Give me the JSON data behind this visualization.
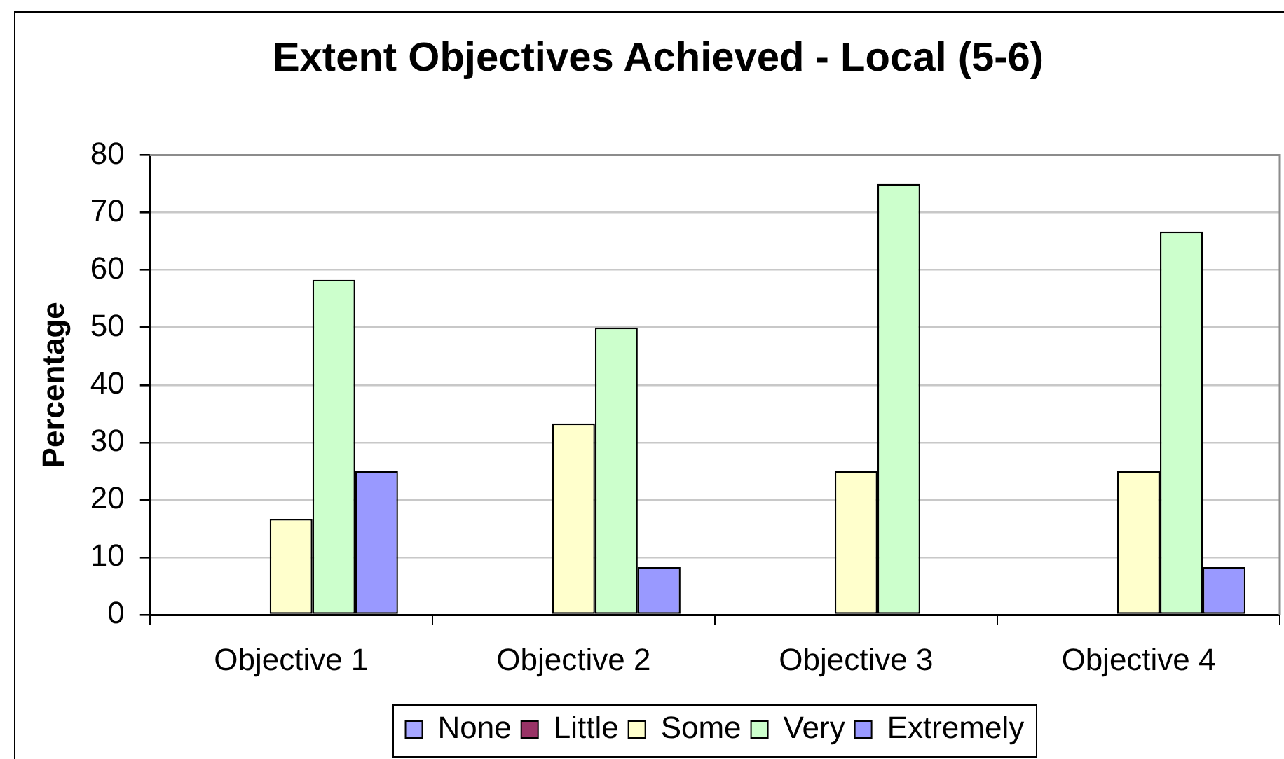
{
  "chart_data": {
    "type": "bar",
    "title": "Extent Objectives Achieved - Local (5-6)",
    "ylabel": "Percentage",
    "categories": [
      "Objective 1",
      "Objective 2",
      "Objective 3",
      "Objective 4"
    ],
    "series": [
      {
        "name": "None",
        "color": "#a6a6ff",
        "values": [
          0,
          0,
          0,
          0
        ]
      },
      {
        "name": "Little",
        "color": "#993366",
        "values": [
          0,
          0,
          0,
          0
        ]
      },
      {
        "name": "Some",
        "color": "#ffffcc",
        "values": [
          16.7,
          33.3,
          25,
          25
        ]
      },
      {
        "name": "Very",
        "color": "#ccffcc",
        "values": [
          58.3,
          50,
          75,
          66.7
        ]
      },
      {
        "name": "Extremely",
        "color": "#9999ff",
        "values": [
          25,
          8.3,
          0,
          8.3
        ]
      }
    ],
    "ylim": [
      0,
      80
    ],
    "yticks": [
      0,
      10,
      20,
      30,
      40,
      50,
      60,
      70,
      80
    ],
    "grid": "y",
    "legend": "bottom"
  }
}
